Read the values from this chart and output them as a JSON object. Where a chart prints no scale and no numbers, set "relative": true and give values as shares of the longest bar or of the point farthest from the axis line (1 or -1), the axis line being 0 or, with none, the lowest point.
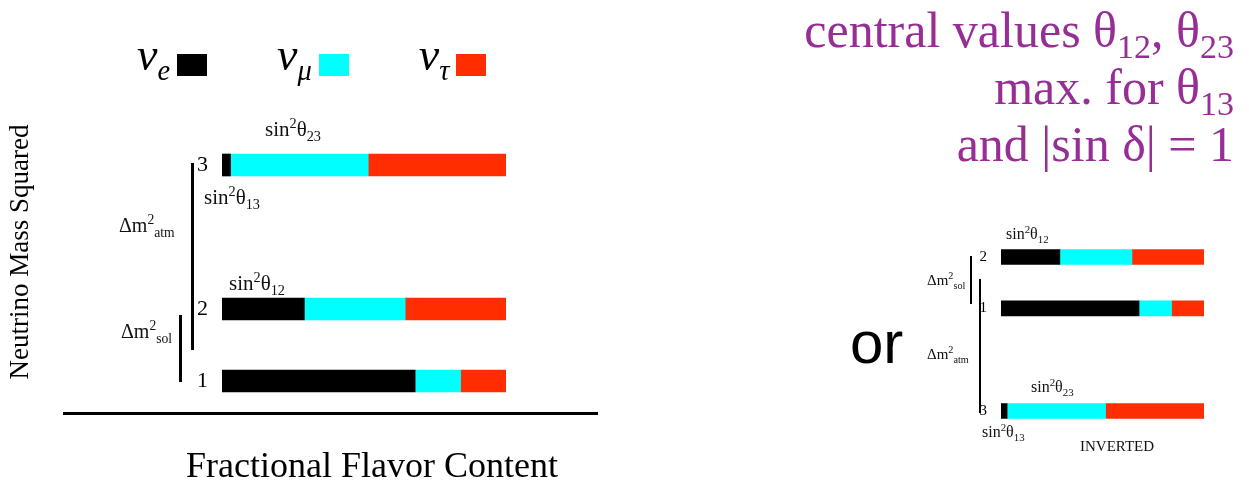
{
  "chart_data": [
    {
      "type": "bar",
      "orientation": "horizontal",
      "stacked": true,
      "relative": true,
      "xlabel": "Fractional Flavor Content",
      "ylabel": "Neutrino Mass Squared",
      "legend": "top",
      "categories": [
        "3",
        null,
        "2",
        "1"
      ],
      "series": [
        {
          "name": "ν$_{e}$",
          "color": "#000000",
          "values": [
            0.03,
            null,
            0.29,
            0.68
          ]
        },
        {
          "name": "ν$_{μ}$",
          "color": "#00ffff",
          "values": [
            0.485,
            null,
            0.355,
            0.16
          ]
        },
        {
          "name": "ν$_{τ}$",
          "color": "#ff2d00",
          "values": [
            0.485,
            null,
            0.355,
            0.16
          ]
        }
      ],
      "annotations": [
        "sin$^{2}$θ$_{23}$",
        "sin$^{2}$θ$_{13}$",
        "sin$^{2}$θ$_{12}$",
        "Δm$^{2}$$_{atm}$",
        "Δm$^{2}$$_{sol}$"
      ]
    },
    {
      "type": "bar",
      "orientation": "horizontal",
      "stacked": true,
      "relative": true,
      "categories": [
        "2",
        "1",
        null,
        "3"
      ],
      "series": [
        {
          "color": "#000000",
          "values": [
            0.29,
            0.68,
            null,
            0.03
          ]
        },
        {
          "color": "#00ffff",
          "values": [
            0.355,
            0.16,
            null,
            0.485
          ]
        },
        {
          "color": "#ff2d00",
          "values": [
            0.355,
            0.16,
            null,
            0.485
          ]
        }
      ],
      "annotations": [
        "central values θ$_{12}$, θ$_{23}$\nmax. for θ$_{13}$\nand |sin δ| = 1",
        "sin$^{2}$θ$_{12}$",
        "Δm$^{2}$$_{sol}$",
        "or",
        "Δm$^{2}$$_{atm}$",
        "sin$^{2}$θ$_{23}$",
        "sin$^{2}$θ$_{13}$",
        "INVERTED"
      ]
    }
  ]
}
